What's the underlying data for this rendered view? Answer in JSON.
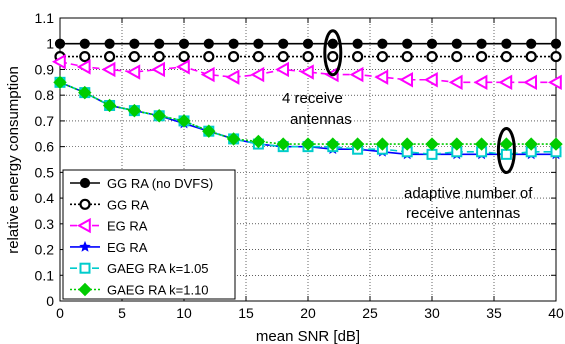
{
  "chart_data": {
    "type": "line",
    "xlabel": "mean SNR [dB]",
    "ylabel": "relative energy consumption",
    "xlim": [
      0,
      40
    ],
    "ylim": [
      0,
      1.1
    ],
    "xticks": [
      "0",
      "5",
      "10",
      "15",
      "20",
      "25",
      "30",
      "35",
      "40"
    ],
    "yticks": [
      "0",
      "0.1",
      "0.2",
      "0.3",
      "0.4",
      "0.5",
      "0.6",
      "0.7",
      "0.8",
      "0.9",
      "1",
      "1.1"
    ],
    "grid": true,
    "legend_position": "bottom-left",
    "x": [
      0,
      2,
      4,
      6,
      8,
      10,
      12,
      14,
      16,
      18,
      20,
      22,
      24,
      26,
      28,
      30,
      32,
      34,
      36,
      38,
      40
    ],
    "series": [
      {
        "name": "GG RA (no DVFS)",
        "color": "#000000",
        "line": "solid",
        "marker": "filled-circle",
        "values": [
          1.0,
          1.0,
          1.0,
          1.0,
          1.0,
          1.0,
          1.0,
          1.0,
          1.0,
          1.0,
          1.0,
          1.0,
          1.0,
          1.0,
          1.0,
          1.0,
          1.0,
          1.0,
          1.0,
          1.0,
          1.0
        ]
      },
      {
        "name": "GG RA",
        "color": "#000000",
        "line": "dotted",
        "marker": "open-circle",
        "values": [
          0.95,
          0.95,
          0.95,
          0.95,
          0.95,
          0.95,
          0.95,
          0.95,
          0.95,
          0.95,
          0.95,
          0.95,
          0.95,
          0.95,
          0.95,
          0.95,
          0.95,
          0.95,
          0.95,
          0.95,
          0.95
        ]
      },
      {
        "name": "EG RA",
        "color": "#ff00ff",
        "line": "dashed",
        "marker": "left-triangle",
        "values": [
          0.93,
          0.91,
          0.9,
          0.89,
          0.9,
          0.91,
          0.88,
          0.87,
          0.88,
          0.9,
          0.89,
          0.88,
          0.88,
          0.87,
          0.86,
          0.86,
          0.85,
          0.85,
          0.85,
          0.85,
          0.85
        ]
      },
      {
        "name": "EG RA",
        "color": "#0000ff",
        "line": "solid",
        "marker": "star",
        "values": [
          0.85,
          0.81,
          0.76,
          0.74,
          0.72,
          0.69,
          0.66,
          0.63,
          0.61,
          0.6,
          0.6,
          0.59,
          0.59,
          0.58,
          0.57,
          0.57,
          0.57,
          0.57,
          0.57,
          0.57,
          0.57
        ]
      },
      {
        "name": "GAEG RA k=1.05",
        "color": "#00cccc",
        "line": "dashed",
        "marker": "open-square",
        "values": [
          0.85,
          0.81,
          0.76,
          0.74,
          0.72,
          0.7,
          0.66,
          0.63,
          0.61,
          0.6,
          0.6,
          0.6,
          0.59,
          0.59,
          0.58,
          0.57,
          0.58,
          0.58,
          0.57,
          0.58,
          0.58
        ]
      },
      {
        "name": "GAEG RA k=1.10",
        "color": "#00cc00",
        "line": "dotted",
        "marker": "diamond",
        "values": [
          0.85,
          0.81,
          0.76,
          0.74,
          0.72,
          0.7,
          0.66,
          0.63,
          0.62,
          0.61,
          0.61,
          0.61,
          0.61,
          0.61,
          0.61,
          0.61,
          0.61,
          0.61,
          0.61,
          0.61,
          0.61
        ]
      }
    ],
    "annotations": [
      {
        "text_lines": [
          "4 receive",
          "antennas"
        ],
        "circle_at": [
          22,
          0.965
        ]
      },
      {
        "text_lines": [
          "adaptive number of",
          "receive antennas"
        ],
        "circle_at": [
          36,
          0.585
        ]
      }
    ]
  }
}
